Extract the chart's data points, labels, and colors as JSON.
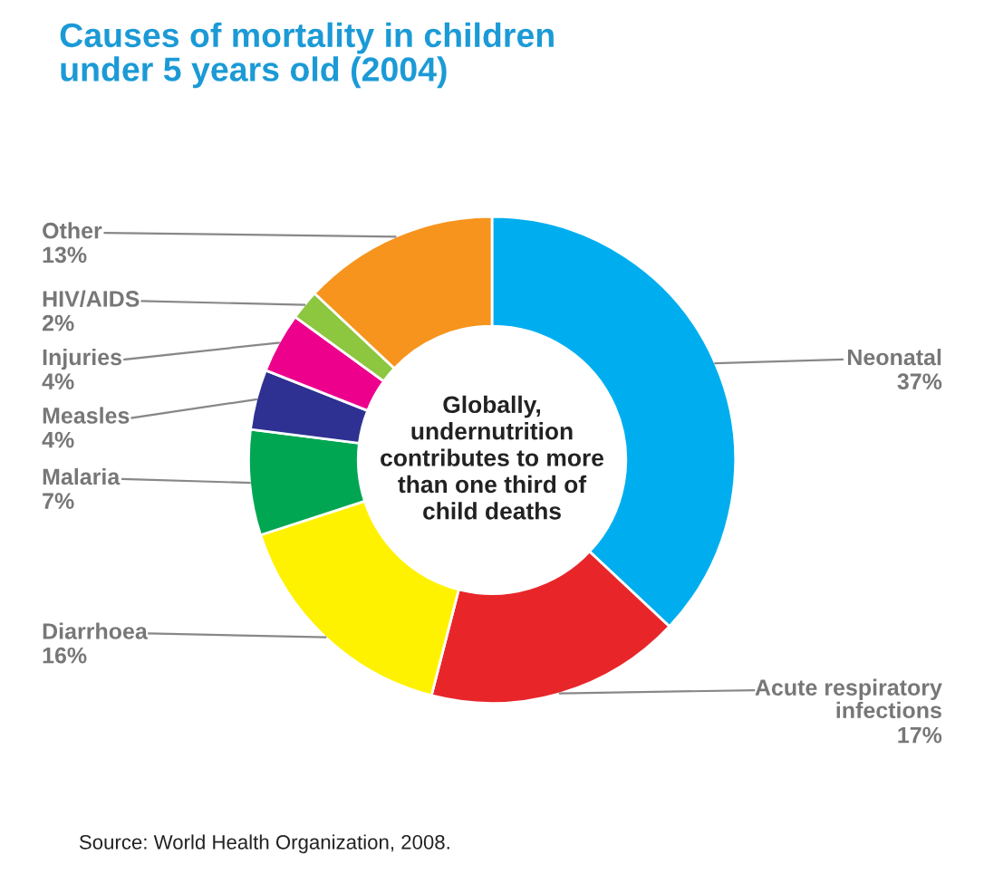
{
  "chart_data": {
    "type": "donut",
    "title": "Causes of mortality in children\nunder 5 years old (2004)",
    "categories": [
      "Neonatal",
      "Acute respiratory\ninfections",
      "Diarrhoea",
      "Malaria",
      "Measles",
      "Injuries",
      "HIV/AIDS",
      "Other"
    ],
    "values": [
      37,
      17,
      16,
      7,
      4,
      4,
      2,
      13
    ],
    "value_labels": [
      "37%",
      "17%",
      "16%",
      "7%",
      "4%",
      "4%",
      "2%",
      "13%"
    ],
    "colors": [
      "#00aeef",
      "#e8262a",
      "#fff200",
      "#00a651",
      "#2e3192",
      "#ec008c",
      "#8dc63f",
      "#f7941d"
    ],
    "annotations": [
      "Globally,\nundernutrition\ncontributes to more\nthan one third of\nchild deaths",
      "Source: World Health Organization, 2008."
    ],
    "legend": false
  }
}
